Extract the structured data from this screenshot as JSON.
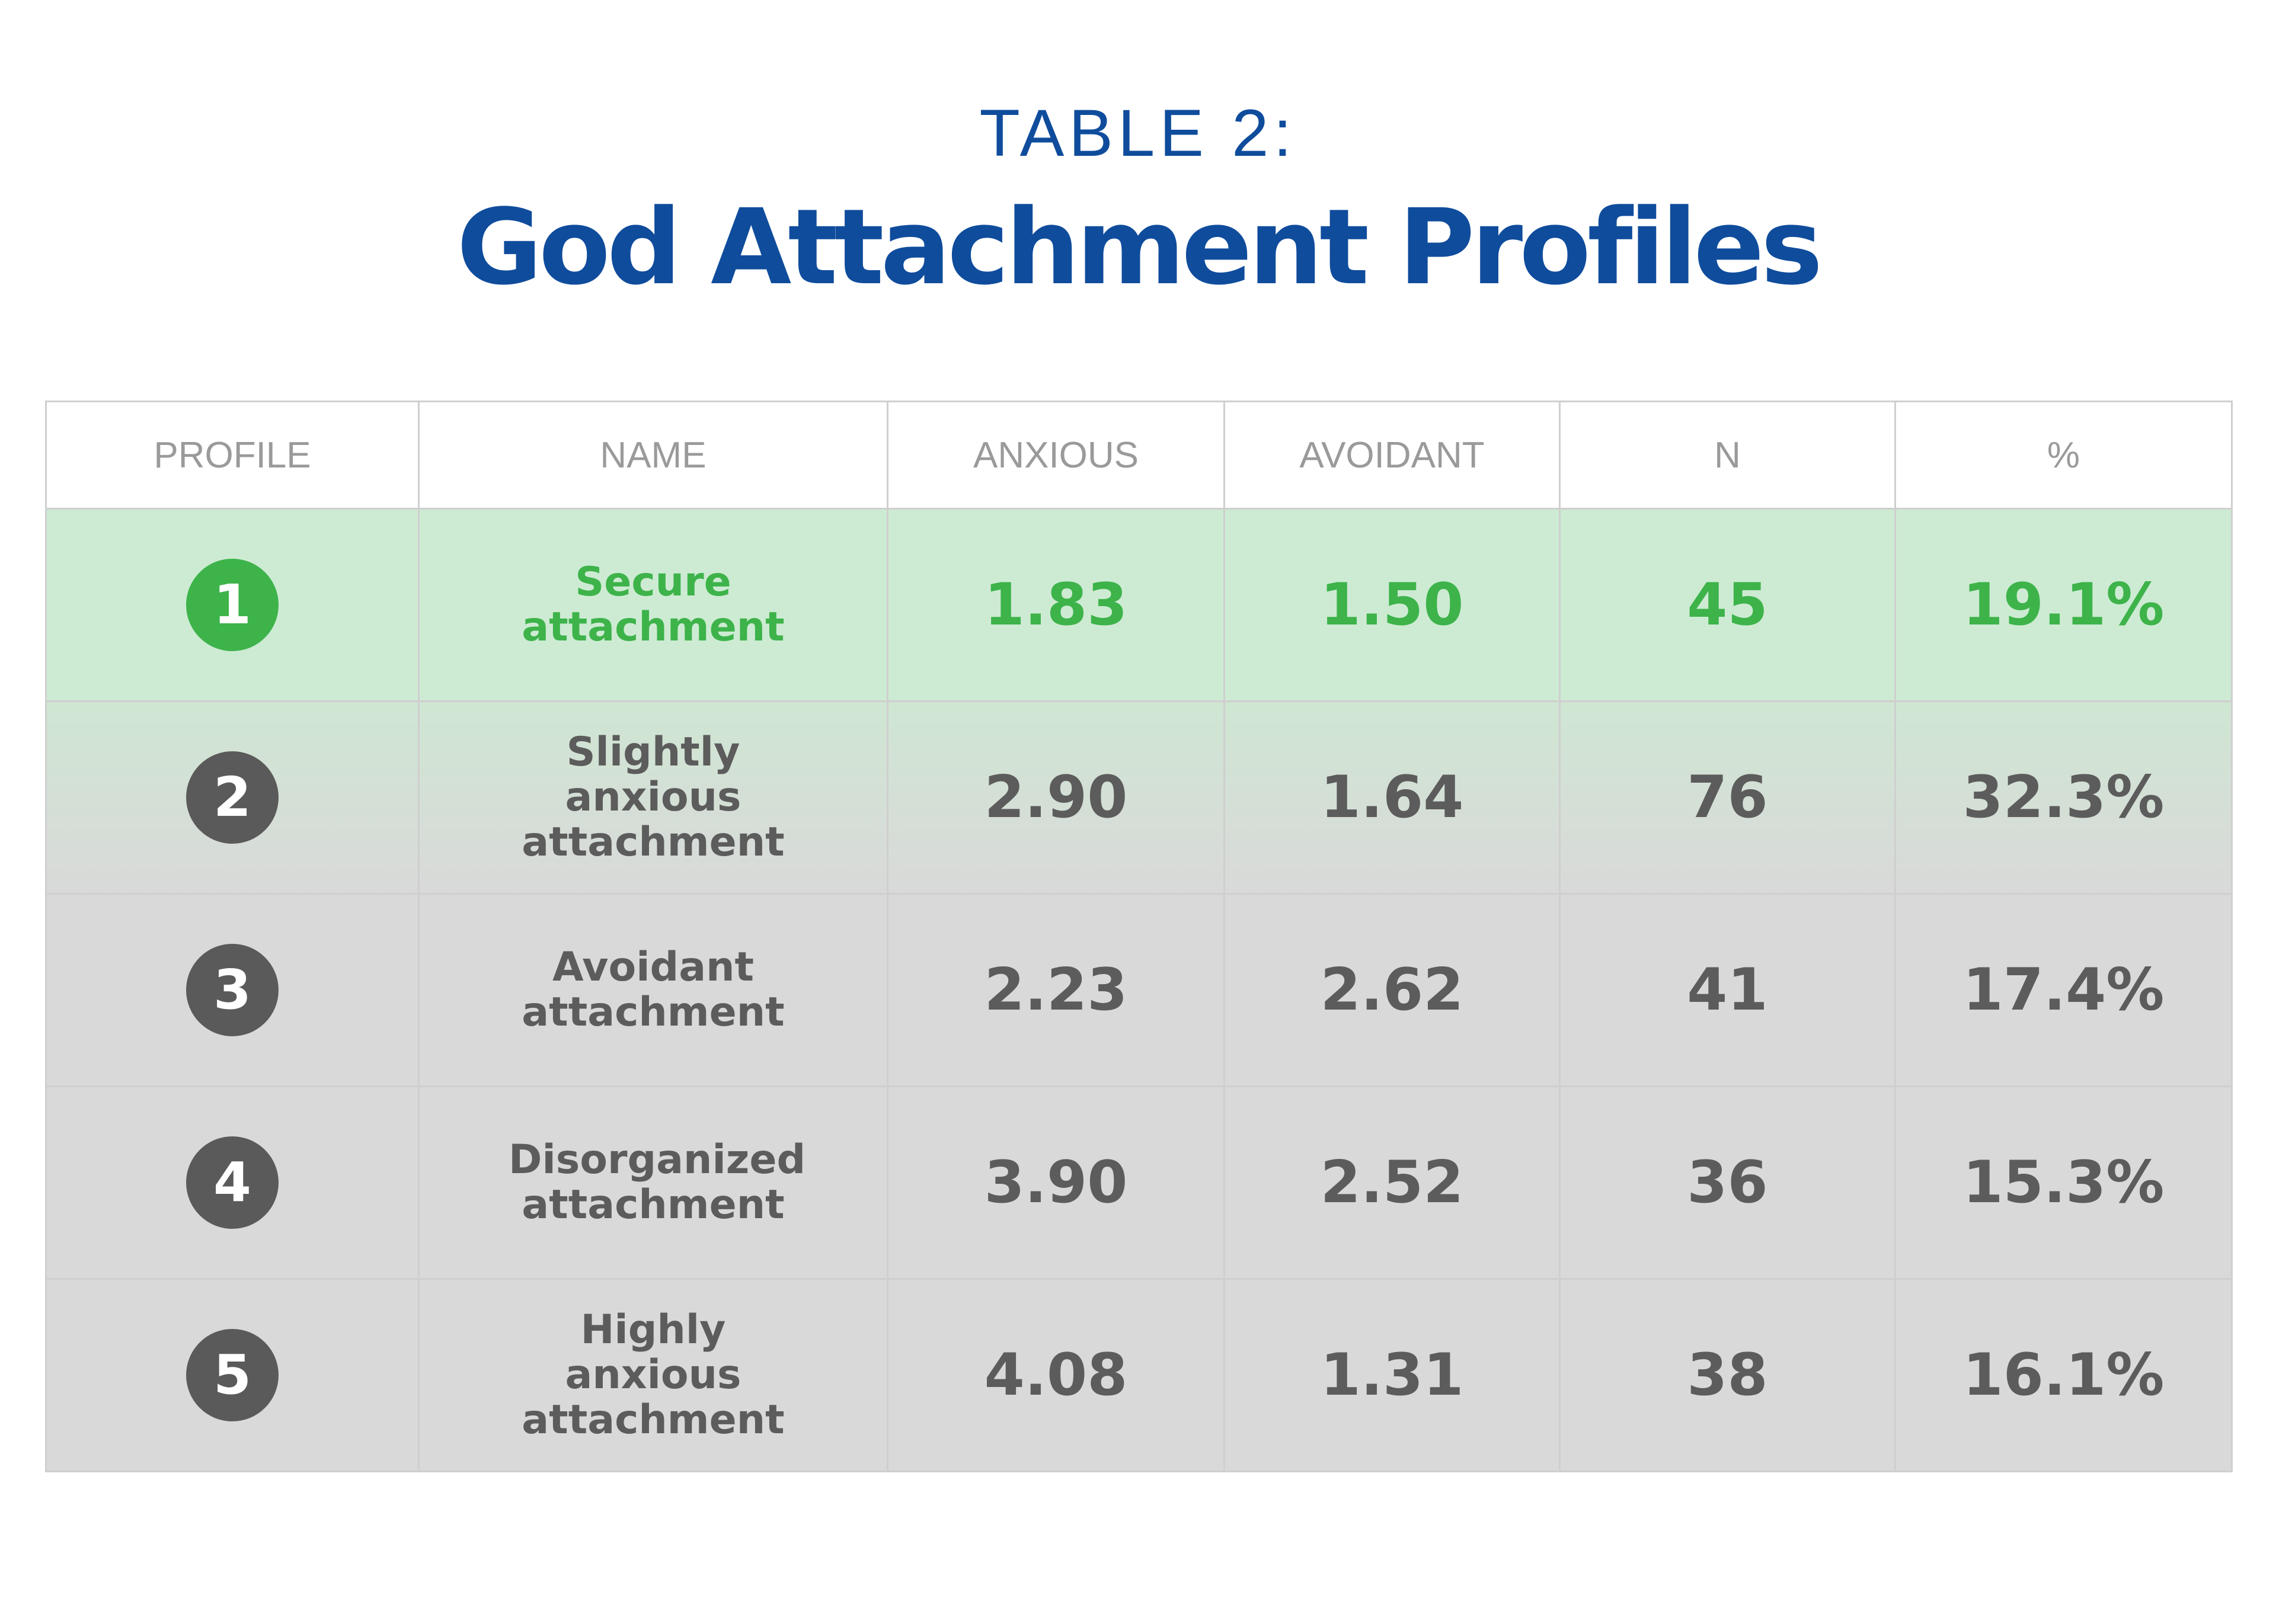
{
  "header": {
    "label": "TABLE 2:",
    "title": "God Attachment Profiles"
  },
  "table": {
    "columns": [
      "PROFILE",
      "NAME",
      "ANXIOUS",
      "AVOIDANT",
      "N",
      "%"
    ],
    "rows": [
      [
        "1",
        "Secure attachment",
        "1.83",
        "1.50",
        "45",
        "19.1%"
      ],
      [
        "2",
        "Slightly anxious attachment",
        "2.90",
        "1.64",
        "76",
        "32.3%"
      ],
      [
        "3",
        "Avoidant attachment",
        "2.23",
        "2.62",
        "41",
        "17.4%"
      ],
      [
        "4",
        "Disorganized attachment",
        "3.90",
        "2.52",
        "36",
        "15.3%"
      ],
      [
        "5",
        "Highly anxious attachment",
        "4.08",
        "1.31",
        "38",
        "16.1%"
      ]
    ]
  }
}
